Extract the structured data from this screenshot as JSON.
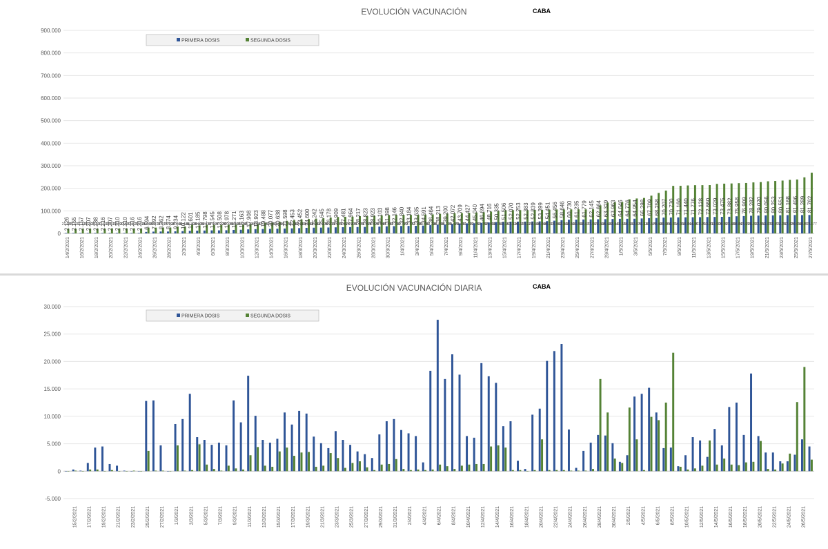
{
  "chart_data": [
    {
      "type": "bar",
      "title": "EVOLUCIÓN VACUNACIÓN",
      "subtitle": "CABA",
      "ylim": [
        0,
        900000
      ],
      "yticks": [
        0,
        100000,
        200000,
        300000,
        400000,
        500000,
        600000,
        700000,
        800000,
        900000
      ],
      "ytick_labels": [
        "0",
        "100.000",
        "200.000",
        "300.000",
        "400.000",
        "500.000",
        "600.000",
        "700.000",
        "800.000",
        "900.000"
      ],
      "grid": true,
      "legend": "top-left",
      "series_colors": [
        "#2f5597",
        "#548235"
      ],
      "categories": [
        "14/2/2021",
        "15/2/2021",
        "16/2/2021",
        "17/2/2021",
        "18/2/2021",
        "19/2/2021",
        "20/2/2021",
        "21/2/2021",
        "22/2/2021",
        "23/2/2021",
        "24/2/2021",
        "25/2/2021",
        "26/2/2021",
        "27/2/2021",
        "28/2/2021",
        "1/3/2021",
        "2/3/2021",
        "3/3/2021",
        "4/3/2021",
        "5/3/2021",
        "6/3/2021",
        "7/3/2021",
        "8/3/2021",
        "9/3/2021",
        "10/3/2021",
        "11/3/2021",
        "12/3/2021",
        "13/3/2021",
        "14/3/2021",
        "15/3/2021",
        "16/3/2021",
        "17/3/2021",
        "18/3/2021",
        "19/3/2021",
        "20/3/2021",
        "21/3/2021",
        "22/3/2021",
        "23/3/2021",
        "24/3/2021",
        "25/3/2021",
        "26/3/2021",
        "27/3/2021",
        "28/3/2021",
        "29/3/2021",
        "30/3/2021",
        "31/3/2021",
        "1/4/2021",
        "2/4/2021",
        "3/4/2021",
        "4/4/2021",
        "5/4/2021",
        "6/4/2021",
        "7/4/2021",
        "8/4/2021",
        "9/4/2021",
        "10/4/2021",
        "11/4/2021",
        "12/4/2021",
        "13/4/2021",
        "14/4/2021",
        "15/4/2021",
        "16/4/2021",
        "17/4/2021",
        "18/4/2021",
        "19/4/2021",
        "20/4/2021",
        "21/4/2021",
        "22/4/2021",
        "23/4/2021",
        "24/4/2021",
        "25/4/2021",
        "26/4/2021",
        "27/4/2021",
        "28/4/2021",
        "29/4/2021",
        "30/4/2021",
        "1/5/2021",
        "2/5/2021",
        "3/5/2021",
        "4/5/2021",
        "5/5/2021",
        "6/5/2021",
        "7/5/2021",
        "8/5/2021",
        "9/5/2021",
        "10/5/2021",
        "11/5/2021",
        "12/5/2021",
        "13/5/2021",
        "14/5/2021",
        "15/5/2021",
        "16/5/2021",
        "17/5/2021",
        "18/5/2021",
        "19/5/2021",
        "20/5/2021",
        "21/5/2021",
        "22/5/2021",
        "23/5/2021",
        "24/5/2021",
        "25/5/2021",
        "26/5/2021",
        "27/5/2021"
      ],
      "xtick_every": 2,
      "series": [
        {
          "name": "PRIMERA DOSIS",
          "values": [
            2126,
            2155,
            2157,
            2207,
            2288,
            2216,
            2307,
            2310,
            2310,
            2316,
            2316,
            6594,
            7892,
            8362,
            8374,
            9234,
            10122,
            11601,
            12185,
            12798,
            13545,
            13508,
            13978,
            15271,
            16163,
            17908,
            18923,
            19488,
            20077,
            20638,
            21598,
            22453,
            23452,
            24600,
            25242,
            25645,
            26178,
            26909,
            27481,
            27964,
            28217,
            28823,
            28923,
            30103,
            31398,
            32146,
            32840,
            33184,
            33635,
            34591,
            36464,
            38213,
            39200,
            42072,
            43709,
            44427,
            45040,
            46694,
            48716,
            50335,
            51506,
            52070,
            52253,
            52383,
            52839,
            53399,
            54451,
            56456,
            58646,
            60730,
            61235,
            61779,
            62145,
            62664,
            63329,
            63963,
            64646,
            64776,
            64954,
            66298,
            67709,
            68258,
            70207,
            70730,
            71160,
            71440,
            71776,
            72128,
            72660,
            73029,
            73475,
            73882,
            75958,
            76909,
            78282,
            79020,
            80056,
            80253,
            80551,
            81168,
            81496,
            81289,
            81762
          ]
        },
        {
          "name": "SEGUNDA DOSIS",
          "values": [
            21083,
            21112,
            21129,
            21403,
            21600,
            21603,
            22073,
            22090,
            22097,
            22079,
            22078,
            25668,
            25673,
            25677,
            25692,
            30348,
            30448,
            38307,
            35605,
            36739,
            37115,
            37225,
            38115,
            38669,
            38938,
            41304,
            41393,
            47141,
            47987,
            51484,
            55776,
            58689,
            62018,
            63643,
            65231,
            67105,
            70316,
            72730,
            73814,
            74395,
            76430,
            76918,
            78094,
            79548,
            81481,
            82166,
            82170,
            82172,
            82465,
            83682,
            84398,
            86808,
            88219,
            89479,
            89930,
            91237,
            92781,
            93732,
            96469,
            99784,
            102757,
            103234,
            103227,
            103227,
            104008,
            104090,
            105217,
            106092,
            106202,
            106503,
            106592,
            106677,
            107057,
            124365,
            136487,
            138441,
            139128,
            151337,
            154876,
            157239,
            167346,
            179403,
            189880,
            210674,
            211066,
            212644,
            213807,
            213901,
            214203,
            219509,
            220591,
            221488,
            222847,
            223619,
            226133,
            227553,
            231073,
            232477,
            234267,
            237426,
            239030,
            248577,
            269177
          ]
        }
      ]
    },
    {
      "type": "bar",
      "title": "EVOLUCIÓN VACUNACIÓN DIARIA",
      "subtitle": "CABA",
      "ylim": [
        -5000,
        30000
      ],
      "yticks": [
        -5000,
        0,
        5000,
        10000,
        15000,
        20000,
        25000,
        30000
      ],
      "ytick_labels": [
        "-5.000",
        "0",
        "5.000",
        "10.000",
        "15.000",
        "20.000",
        "25.000",
        "30.000"
      ],
      "grid": true,
      "legend": "top-left",
      "series_colors": [
        "#2f5597",
        "#548235"
      ],
      "categories": [
        "14/2/2021",
        "15/2/2021",
        "16/2/2021",
        "17/2/2021",
        "18/2/2021",
        "19/2/2021",
        "20/2/2021",
        "21/2/2021",
        "22/2/2021",
        "23/2/2021",
        "24/2/2021",
        "25/2/2021",
        "26/2/2021",
        "27/2/2021",
        "28/2/2021",
        "1/3/2021",
        "2/3/2021",
        "3/3/2021",
        "4/3/2021",
        "5/3/2021",
        "6/3/2021",
        "7/3/2021",
        "8/3/2021",
        "9/3/2021",
        "10/3/2021",
        "11/3/2021",
        "12/3/2021",
        "13/3/2021",
        "14/3/2021",
        "15/3/2021",
        "16/3/2021",
        "17/3/2021",
        "18/3/2021",
        "19/3/2021",
        "20/3/2021",
        "21/3/2021",
        "22/3/2021",
        "23/3/2021",
        "24/3/2021",
        "25/3/2021",
        "26/3/2021",
        "27/3/2021",
        "28/3/2021",
        "29/3/2021",
        "30/3/2021",
        "31/3/2021",
        "1/4/2021",
        "2/4/2021",
        "3/4/2021",
        "4/4/2021",
        "5/4/2021",
        "6/4/2021",
        "7/4/2021",
        "8/4/2021",
        "9/4/2021",
        "10/4/2021",
        "11/4/2021",
        "12/4/2021",
        "13/4/2021",
        "14/4/2021",
        "15/4/2021",
        "16/4/2021",
        "17/4/2021",
        "18/4/2021",
        "19/4/2021",
        "20/4/2021",
        "21/4/2021",
        "22/4/2021",
        "23/4/2021",
        "24/4/2021",
        "25/4/2021",
        "26/4/2021",
        "27/4/2021",
        "28/4/2021",
        "29/4/2021",
        "30/4/2021",
        "1/5/2021",
        "2/5/2021",
        "3/5/2021",
        "4/5/2021",
        "5/5/2021",
        "6/5/2021",
        "7/5/2021",
        "8/5/2021",
        "9/5/2021",
        "10/5/2021",
        "11/5/2021",
        "12/5/2021",
        "13/5/2021",
        "14/5/2021",
        "15/5/2021",
        "16/5/2021",
        "17/5/2021",
        "18/5/2021",
        "19/5/2021",
        "20/5/2021",
        "21/5/2021",
        "22/5/2021",
        "23/5/2021",
        "24/5/2021",
        "25/5/2021",
        "26/5/2021",
        "27/5/2021"
      ],
      "xtick_start": 1,
      "xtick_every": 2,
      "series": [
        {
          "name": "PRIMERA DOSIS",
          "values": [
            0,
            300,
            100,
            1500,
            4300,
            4500,
            1300,
            1000,
            100,
            0,
            0,
            12800,
            12900,
            4700,
            0,
            8600,
            9500,
            14100,
            6200,
            5700,
            4800,
            5200,
            4700,
            12900,
            8900,
            17400,
            10100,
            5700,
            5200,
            5900,
            10700,
            8500,
            11000,
            10500,
            6300,
            5100,
            4200,
            7300,
            5700,
            4800,
            3600,
            3100,
            2400,
            6700,
            9100,
            9500,
            7500,
            6900,
            6400,
            1600,
            18300,
            27600,
            16800,
            21300,
            17600,
            6400,
            6100,
            19700,
            17300,
            16100,
            8200,
            9100,
            1900,
            400,
            10300,
            11400,
            20100,
            21900,
            23200,
            7600,
            600,
            3700,
            5200,
            6600,
            6500,
            5100,
            1700,
            2900,
            13600,
            14100,
            15200,
            10700,
            4200,
            4300,
            900,
            2900,
            6200,
            5600,
            2600,
            7700,
            4700,
            11700,
            12500,
            6600,
            17800,
            6400,
            3400,
            3400,
            1800,
            1800,
            3000,
            5800,
            4500
          ]
        },
        {
          "name": "SEGUNDA DOSIS",
          "values": [
            0,
            100,
            0,
            300,
            300,
            0,
            200,
            0,
            0,
            100,
            0,
            3700,
            100,
            100,
            0,
            4700,
            100,
            200,
            4900,
            1200,
            400,
            100,
            1000,
            500,
            300,
            2900,
            4400,
            1000,
            800,
            3600,
            4300,
            2800,
            3400,
            3500,
            800,
            1000,
            3300,
            2400,
            600,
            1500,
            1800,
            700,
            200,
            1200,
            1300,
            2200,
            400,
            200,
            300,
            200,
            300,
            1200,
            900,
            400,
            1000,
            1200,
            1300,
            1300,
            4500,
            4700,
            4300,
            200,
            200,
            0,
            200,
            5800,
            200,
            200,
            200,
            100,
            100,
            100,
            400,
            16800,
            10700,
            2300,
            1500,
            11600,
            5800,
            200,
            9900,
            9300,
            12500,
            21600,
            800,
            300,
            500,
            1000,
            5600,
            1200,
            2300,
            1200,
            1100,
            1600,
            1700,
            5500,
            400,
            300,
            1400,
            3200,
            12600,
            19000,
            2100
          ]
        }
      ]
    }
  ]
}
